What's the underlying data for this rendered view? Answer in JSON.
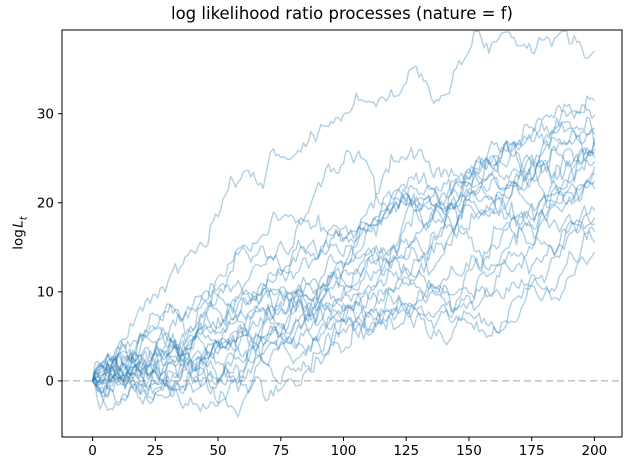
{
  "chart_data": {
    "type": "line",
    "title": "log likelihood ratio processes (nature = f)",
    "xlabel": "",
    "ylabel": "log L_t",
    "ylabel_parts": {
      "prefix": "log",
      "var": "L",
      "sub": "t"
    },
    "x_ticks": [
      0,
      25,
      50,
      75,
      100,
      125,
      150,
      175,
      200
    ],
    "y_ticks": [
      0,
      10,
      20,
      30
    ],
    "xlim": [
      -12.2,
      211
    ],
    "ylim": [
      -6.3,
      39.4
    ],
    "grid": false,
    "legend": "none",
    "n_steps": 200,
    "line_color": "#1f77b4",
    "line_alpha": 0.35,
    "line_width": 1.4,
    "zero_line": {
      "y": 0,
      "color": "#b3b3b3",
      "dash": "7 4",
      "width": 1.2
    },
    "series_description": "ensemble of simulated log likelihood ratio sample paths, all starting at log L_0 = 0 and drifting upward; one dashed reference line at 0",
    "paths": {
      "seed": 7,
      "sigma": 0.65,
      "start_value": 0,
      "endpoints": [
        37.0,
        31.5,
        29.8,
        28.3,
        27.7,
        27.2,
        26.8,
        26.4,
        26.0,
        25.6,
        25.1,
        24.6,
        24.0,
        23.2,
        22.4,
        21.6,
        19.2,
        18.3,
        17.6,
        16.8,
        15.6,
        14.4
      ]
    }
  },
  "layout_colors": {
    "background": "#ffffff",
    "spine": "#000000",
    "tick_label": "#000000"
  }
}
